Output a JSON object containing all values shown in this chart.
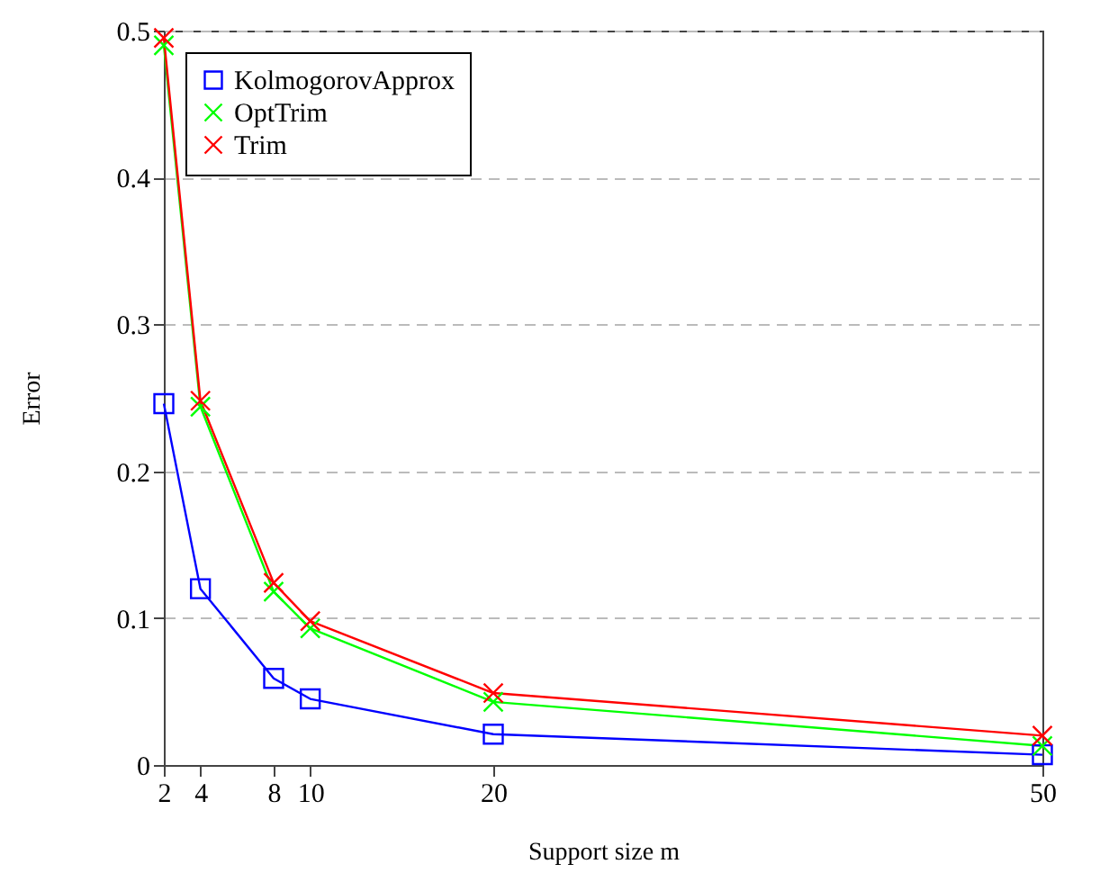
{
  "chart_data": {
    "type": "line",
    "xlabel": "Support size m",
    "ylabel": "Error",
    "x": [
      2,
      4,
      8,
      10,
      20,
      50
    ],
    "xlim": [
      2,
      50
    ],
    "xticks": [
      2,
      4,
      8,
      10,
      20,
      50
    ],
    "ylim": [
      0,
      0.5
    ],
    "yticks": [
      0,
      0.1,
      0.2,
      0.3,
      0.4,
      0.5
    ],
    "grid": "y",
    "legend": "top left",
    "series": [
      {
        "name": "KolmogorovApprox",
        "color": "#0000ff",
        "marker": "square",
        "values": [
          0.246,
          0.12,
          0.059,
          0.045,
          0.021,
          0.007
        ]
      },
      {
        "name": "OptTrim",
        "color": "#00ff00",
        "marker": "cross",
        "values": [
          0.49,
          0.244,
          0.118,
          0.093,
          0.043,
          0.013
        ]
      },
      {
        "name": "Trim",
        "color": "#ff0000",
        "marker": "cross",
        "values": [
          0.495,
          0.248,
          0.124,
          0.098,
          0.049,
          0.02
        ]
      }
    ]
  }
}
